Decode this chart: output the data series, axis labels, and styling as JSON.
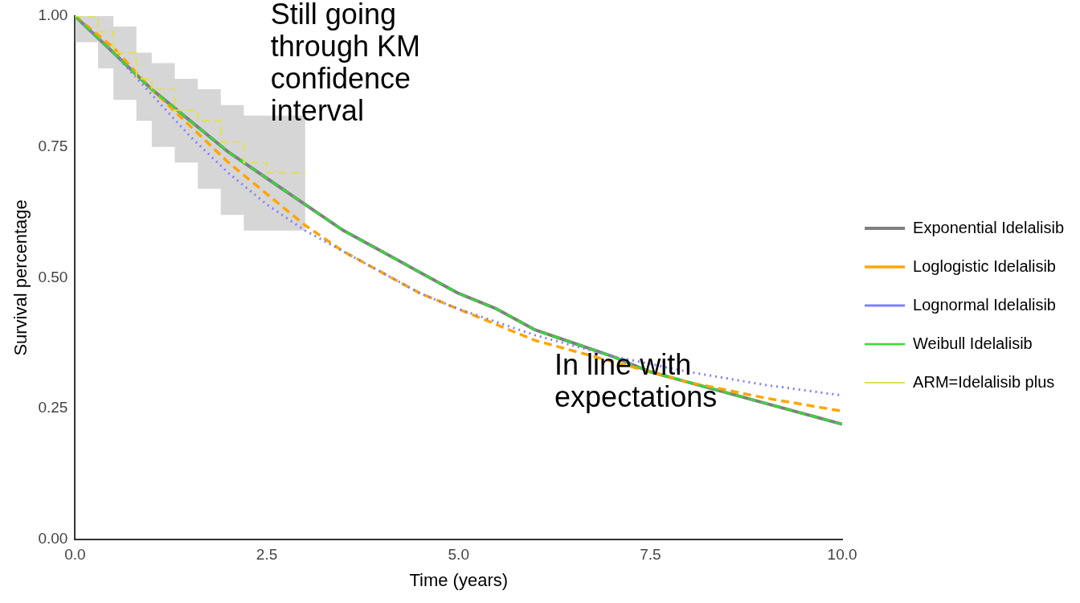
{
  "chart_data": {
    "type": "line",
    "xlabel": "Time (years)",
    "ylabel": "Survival percentage",
    "xlim": [
      0,
      10
    ],
    "xticks": [
      {
        "value": 0,
        "label": "0.0"
      },
      {
        "value": 2.5,
        "label": "2.5"
      },
      {
        "value": 5,
        "label": "5.0"
      },
      {
        "value": 7.5,
        "label": "7.5"
      },
      {
        "value": 10,
        "label": "10.0"
      }
    ],
    "ylim": [
      0,
      1
    ],
    "yticks": [
      {
        "value": 0,
        "label": "0.00"
      },
      {
        "value": 0.25,
        "label": "0.25"
      },
      {
        "value": 0.5,
        "label": "0.50"
      },
      {
        "value": 0.75,
        "label": "0.75"
      },
      {
        "value": 1,
        "label": "1.00"
      }
    ],
    "grid": false,
    "legend": "right",
    "marker": "none",
    "series": [
      {
        "name": "Exponential Idelalisib",
        "color": "#7f7f7f",
        "line_style": "solid",
        "x": [
          0,
          0.5,
          1,
          1.5,
          2,
          2.5,
          3,
          3.5,
          4,
          4.5,
          5,
          5.5,
          6,
          6.5,
          7,
          7.5,
          8,
          8.5,
          9,
          9.5,
          10
        ],
        "values": [
          1,
          0.93,
          0.86,
          0.8,
          0.74,
          0.69,
          0.64,
          0.59,
          0.55,
          0.51,
          0.47,
          0.44,
          0.4,
          0.375,
          0.35,
          0.32,
          0.3,
          0.28,
          0.26,
          0.24,
          0.22
        ]
      },
      {
        "name": "Loglogistic Idelalisib",
        "color": "#ffa500",
        "line_style": "dashed",
        "x": [
          0,
          0.5,
          1,
          1.5,
          2,
          2.5,
          3,
          3.5,
          4,
          4.5,
          5,
          6,
          7,
          8,
          9,
          10
        ],
        "values": [
          1,
          0.94,
          0.86,
          0.79,
          0.72,
          0.66,
          0.6,
          0.55,
          0.51,
          0.47,
          0.44,
          0.38,
          0.34,
          0.3,
          0.27,
          0.245
        ]
      },
      {
        "name": "Lognormal Idelalisib",
        "color": "#7f7fff",
        "line_style": "dotted",
        "x": [
          0,
          0.5,
          1,
          1.5,
          2,
          2.5,
          3,
          3.5,
          4,
          4.5,
          5,
          6,
          7,
          8,
          9,
          10
        ],
        "values": [
          1,
          0.93,
          0.85,
          0.77,
          0.7,
          0.64,
          0.59,
          0.55,
          0.51,
          0.47,
          0.44,
          0.39,
          0.35,
          0.32,
          0.295,
          0.275
        ]
      },
      {
        "name": "Weibull Idelalisib",
        "color": "#33dd33",
        "line_style": "dashed",
        "x": [
          0,
          0.5,
          1,
          1.5,
          2,
          2.5,
          3,
          3.5,
          4,
          4.5,
          5,
          5.5,
          6,
          6.5,
          7,
          7.5,
          8,
          8.5,
          9,
          9.5,
          10
        ],
        "values": [
          1,
          0.93,
          0.86,
          0.8,
          0.74,
          0.69,
          0.64,
          0.59,
          0.55,
          0.51,
          0.47,
          0.44,
          0.4,
          0.375,
          0.35,
          0.32,
          0.3,
          0.28,
          0.26,
          0.24,
          0.22
        ]
      },
      {
        "name": "ARM=Idelalisib plus",
        "type": "step",
        "color": "#e0e050",
        "line_style": "dashed",
        "x": [
          0,
          0.3,
          0.5,
          0.8,
          1,
          1.3,
          1.6,
          1.9,
          2.2,
          2.5,
          3
        ],
        "values": [
          1,
          0.97,
          0.93,
          0.88,
          0.86,
          0.82,
          0.8,
          0.76,
          0.72,
          0.7,
          0.7
        ],
        "lower": [
          1,
          0.95,
          0.9,
          0.84,
          0.8,
          0.75,
          0.72,
          0.67,
          0.62,
          0.59,
          0.59
        ],
        "upper": [
          1,
          1,
          0.98,
          0.93,
          0.91,
          0.88,
          0.86,
          0.83,
          0.81,
          0.81,
          0.81
        ]
      }
    ],
    "annotations": [
      "Still going\nthrough KM\nconfidence\ninterval",
      "In line with\nexpectations"
    ]
  }
}
